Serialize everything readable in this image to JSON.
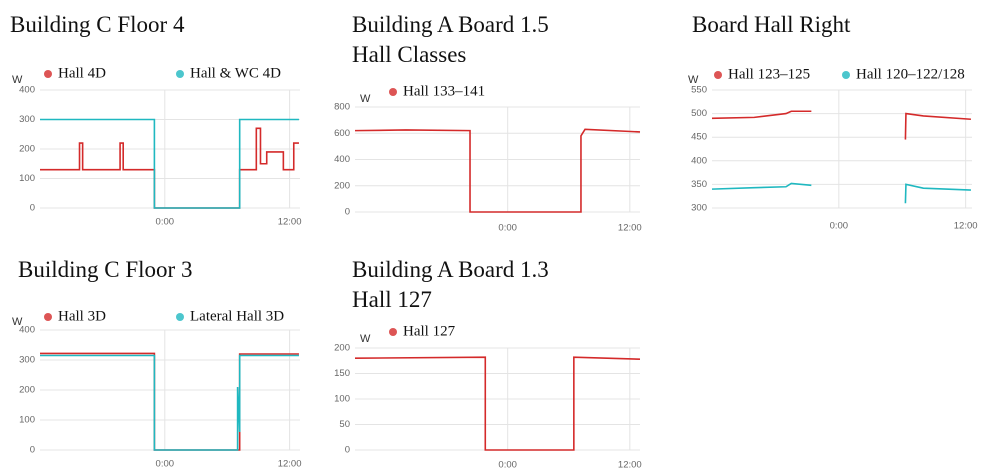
{
  "chart_data": [
    {
      "type": "line",
      "title": "Building C Floor 4",
      "ylabel": "W",
      "x": [
        -12,
        -8.2,
        -8.2,
        -7.9,
        -7.9,
        -4.3,
        -4.3,
        -4.0,
        -4.0,
        -1,
        -1,
        7.2,
        7.2,
        8.8,
        8.8,
        9.2,
        9.2,
        9.8,
        9.8,
        11.4,
        11.4,
        12.4,
        12.4,
        12.9
      ],
      "series": [
        {
          "name": "Hall 4D",
          "color": "#d42a2a",
          "values": [
            130,
            130,
            220,
            220,
            130,
            130,
            220,
            220,
            130,
            130,
            0,
            0,
            130,
            130,
            270,
            270,
            150,
            150,
            190,
            190,
            130,
            130,
            220,
            220
          ]
        },
        {
          "name": "Hall & WC 4D",
          "color": "#1fb8c0",
          "values": [
            300,
            300,
            300,
            300,
            300,
            300,
            300,
            300,
            300,
            300,
            0,
            0,
            300,
            300,
            300,
            300,
            300,
            300,
            300,
            300,
            300,
            300,
            300,
            300
          ]
        }
      ],
      "xlim": [
        -12,
        13
      ],
      "xticks": [
        {
          "value": 0,
          "label": "0:00"
        },
        {
          "value": 12,
          "label": "12:00"
        }
      ],
      "ylim": [
        0,
        400
      ],
      "yticks": [
        0,
        100,
        200,
        300,
        400
      ],
      "grid": true
    },
    {
      "type": "line",
      "title": "Building A Board 1.5 Hall Classes",
      "ylabel": "W",
      "x": [
        -15,
        -10,
        -3.7,
        -3.7,
        7.2,
        7.2,
        7.6,
        13
      ],
      "series": [
        {
          "name": "Hall 133–141",
          "color": "#d42a2a",
          "values": [
            620,
            625,
            620,
            0,
            0,
            580,
            630,
            610
          ]
        }
      ],
      "xlim": [
        -15,
        13
      ],
      "xticks": [
        {
          "value": 0,
          "label": "0:00"
        },
        {
          "value": 12,
          "label": "12:00"
        }
      ],
      "ylim": [
        0,
        800
      ],
      "yticks": [
        0,
        200,
        400,
        600,
        800
      ],
      "grid": true
    },
    {
      "type": "line",
      "title": "Board Hall Right",
      "ylabel": "W",
      "x": [
        -12,
        -8,
        -5,
        -4.5,
        -2.6,
        2,
        6.3,
        6.35,
        8,
        12.5
      ],
      "series": [
        {
          "name": "Hall 123–125",
          "color": "#d42a2a",
          "values": [
            490,
            492,
            500,
            505,
            505,
            null,
            445,
            500,
            495,
            488
          ]
        },
        {
          "name": "Hall 120–122/128",
          "color": "#1fb8c0",
          "values": [
            340,
            343,
            345,
            352,
            348,
            null,
            310,
            350,
            342,
            338
          ]
        }
      ],
      "xlim": [
        -12,
        12.6
      ],
      "xticks": [
        {
          "value": 0,
          "label": "0:00"
        },
        {
          "value": 12,
          "label": "12:00"
        }
      ],
      "ylim": [
        300,
        550
      ],
      "yticks": [
        300,
        350,
        400,
        450,
        500,
        550
      ],
      "grid": true
    },
    {
      "type": "line",
      "title": "Building C Floor 3",
      "ylabel": "W",
      "x": [
        -12,
        -1,
        -1,
        7.0,
        7.0,
        7.2,
        7.2,
        12.9
      ],
      "series": [
        {
          "name": "Hall 3D",
          "color": "#d42a2a",
          "values": [
            322,
            322,
            0,
            0,
            0,
            0,
            320,
            320
          ]
        },
        {
          "name": "Lateral Hall 3D",
          "color": "#1fb8c0",
          "values": [
            315,
            315,
            0,
            0,
            210,
            60,
            315,
            315
          ]
        }
      ],
      "xlim": [
        -12,
        13
      ],
      "xticks": [
        {
          "value": 0,
          "label": "0:00"
        },
        {
          "value": 12,
          "label": "12:00"
        }
      ],
      "ylim": [
        0,
        400
      ],
      "yticks": [
        0,
        100,
        200,
        300,
        400
      ],
      "grid": true
    },
    {
      "type": "line",
      "title": "Building A Board 1.3 Hall 127",
      "ylabel": "W",
      "x": [
        -15,
        -2.2,
        -2.2,
        6.5,
        6.5,
        13
      ],
      "series": [
        {
          "name": "Hall 127",
          "color": "#d42a2a",
          "values": [
            180,
            182,
            0,
            0,
            182,
            178
          ]
        }
      ],
      "xlim": [
        -15,
        13
      ],
      "xticks": [
        {
          "value": 0,
          "label": "0:00"
        },
        {
          "value": 12,
          "label": "12:00"
        }
      ],
      "ylim": [
        0,
        200
      ],
      "yticks": [
        0,
        50,
        100,
        150,
        200
      ],
      "grid": true
    }
  ]
}
